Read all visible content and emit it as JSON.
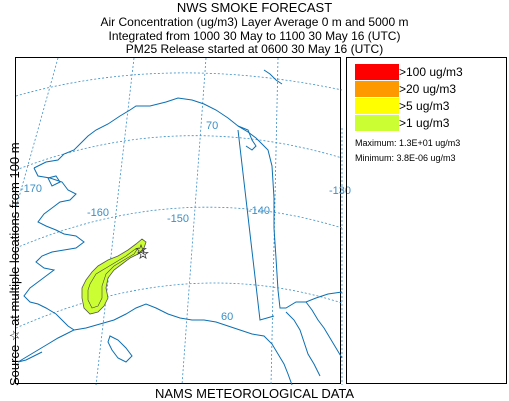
{
  "title": {
    "line1": "NWS SMOKE FORECAST",
    "line2": "Air Concentration (ug/m3) Layer Average    0 m and  5000 m",
    "line3": "Integrated from 1000 30 May to 1100 30 May 16 (UTC)",
    "line4": "PM25 Release started at 0600 30 May 16 (UTC)"
  },
  "side_label": "Source ☆  at multiple locations    from   100 m",
  "bottom_label": "NAMS METEOROLOGICAL DATA",
  "map": {
    "grid_labels": {
      "lon_170": "-170",
      "lon_160": "-160",
      "lon_150": "-150",
      "lon_140": "-140",
      "lon_130": "-130",
      "lat_70": "70",
      "lat_60": "60"
    },
    "colors": {
      "coast": "#0b6fb3",
      "grid": "#3a8fc7",
      "plume": "#ccff33"
    }
  },
  "legend": {
    "items": [
      {
        "label": ">100 ug/m3",
        "color": "#ff0000"
      },
      {
        "label": ">20 ug/m3",
        "color": "#ff9900"
      },
      {
        "label": ">5 ug/m3",
        "color": "#ffff00"
      },
      {
        "label": ">1 ug/m3",
        "color": "#ccff33"
      }
    ],
    "maximum": "Maximum: 1.3E+01 ug/m3",
    "minimum": "Minimum: 3.8E-06 ug/m3"
  }
}
